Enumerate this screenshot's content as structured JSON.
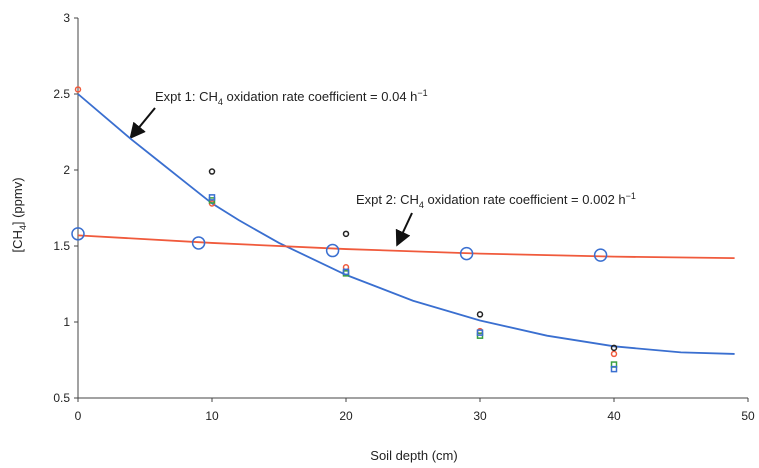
{
  "chart_data": {
    "type": "scatter",
    "x_label": "Soil depth (cm)",
    "y_label": [
      "[CH",
      "4",
      "] (ppmv)"
    ],
    "annotations": [
      [
        "Expt 1: CH",
        "4",
        " oxidation rate coefficient = 0.04 h",
        "−1"
      ],
      [
        "Expt 2: CH",
        "4",
        " oxidation rate coefficient = 0.002 h",
        "−1"
      ]
    ],
    "xlim": [
      0,
      50
    ],
    "xticks": [
      0,
      10,
      20,
      30,
      40,
      50
    ],
    "ylim": [
      0.5,
      3
    ],
    "yticks": [
      0.5,
      1,
      1.5,
      2,
      2.5,
      3
    ],
    "series": [
      {
        "mode": "line",
        "color": "#3a6fd0",
        "x": [
          0,
          2,
          4,
          6,
          8,
          10,
          12,
          15,
          20,
          25,
          30,
          35,
          40,
          45,
          49
        ],
        "values": [
          2.5,
          2.35,
          2.2,
          2.06,
          1.92,
          1.78,
          1.67,
          1.52,
          1.31,
          1.14,
          1.01,
          0.91,
          0.84,
          0.8,
          0.79
        ]
      },
      {
        "mode": "line",
        "color": "#f05a3c",
        "x": [
          0,
          10,
          20,
          30,
          40,
          49
        ],
        "values": [
          1.57,
          1.52,
          1.48,
          1.45,
          1.43,
          1.42
        ]
      },
      {
        "mode": "marker",
        "marker": "circle",
        "size": 6,
        "color": "#3a6fd0",
        "x": [
          0,
          9,
          19,
          29,
          39
        ],
        "values": [
          1.58,
          1.52,
          1.47,
          1.45,
          1.44
        ]
      },
      {
        "mode": "marker",
        "marker": "circle",
        "size": 2.5,
        "color": "#f05a3c",
        "x": [
          0,
          10,
          20,
          30,
          40
        ],
        "values": [
          2.53,
          1.78,
          1.36,
          0.94,
          0.79
        ]
      },
      {
        "mode": "marker",
        "marker": "circle",
        "size": 2.5,
        "color": "#222222",
        "x": [
          10,
          20,
          30,
          40
        ],
        "values": [
          1.99,
          1.58,
          1.05,
          0.83
        ]
      },
      {
        "mode": "marker",
        "marker": "square",
        "size": 2.5,
        "color": "#3aa040",
        "x": [
          10,
          20,
          30,
          40
        ],
        "values": [
          1.8,
          1.32,
          0.91,
          0.72
        ]
      },
      {
        "mode": "marker",
        "marker": "square",
        "size": 2.5,
        "color": "#3a6fd0",
        "x": [
          10,
          20,
          30,
          40
        ],
        "values": [
          1.82,
          1.33,
          0.93,
          0.69
        ]
      }
    ]
  }
}
